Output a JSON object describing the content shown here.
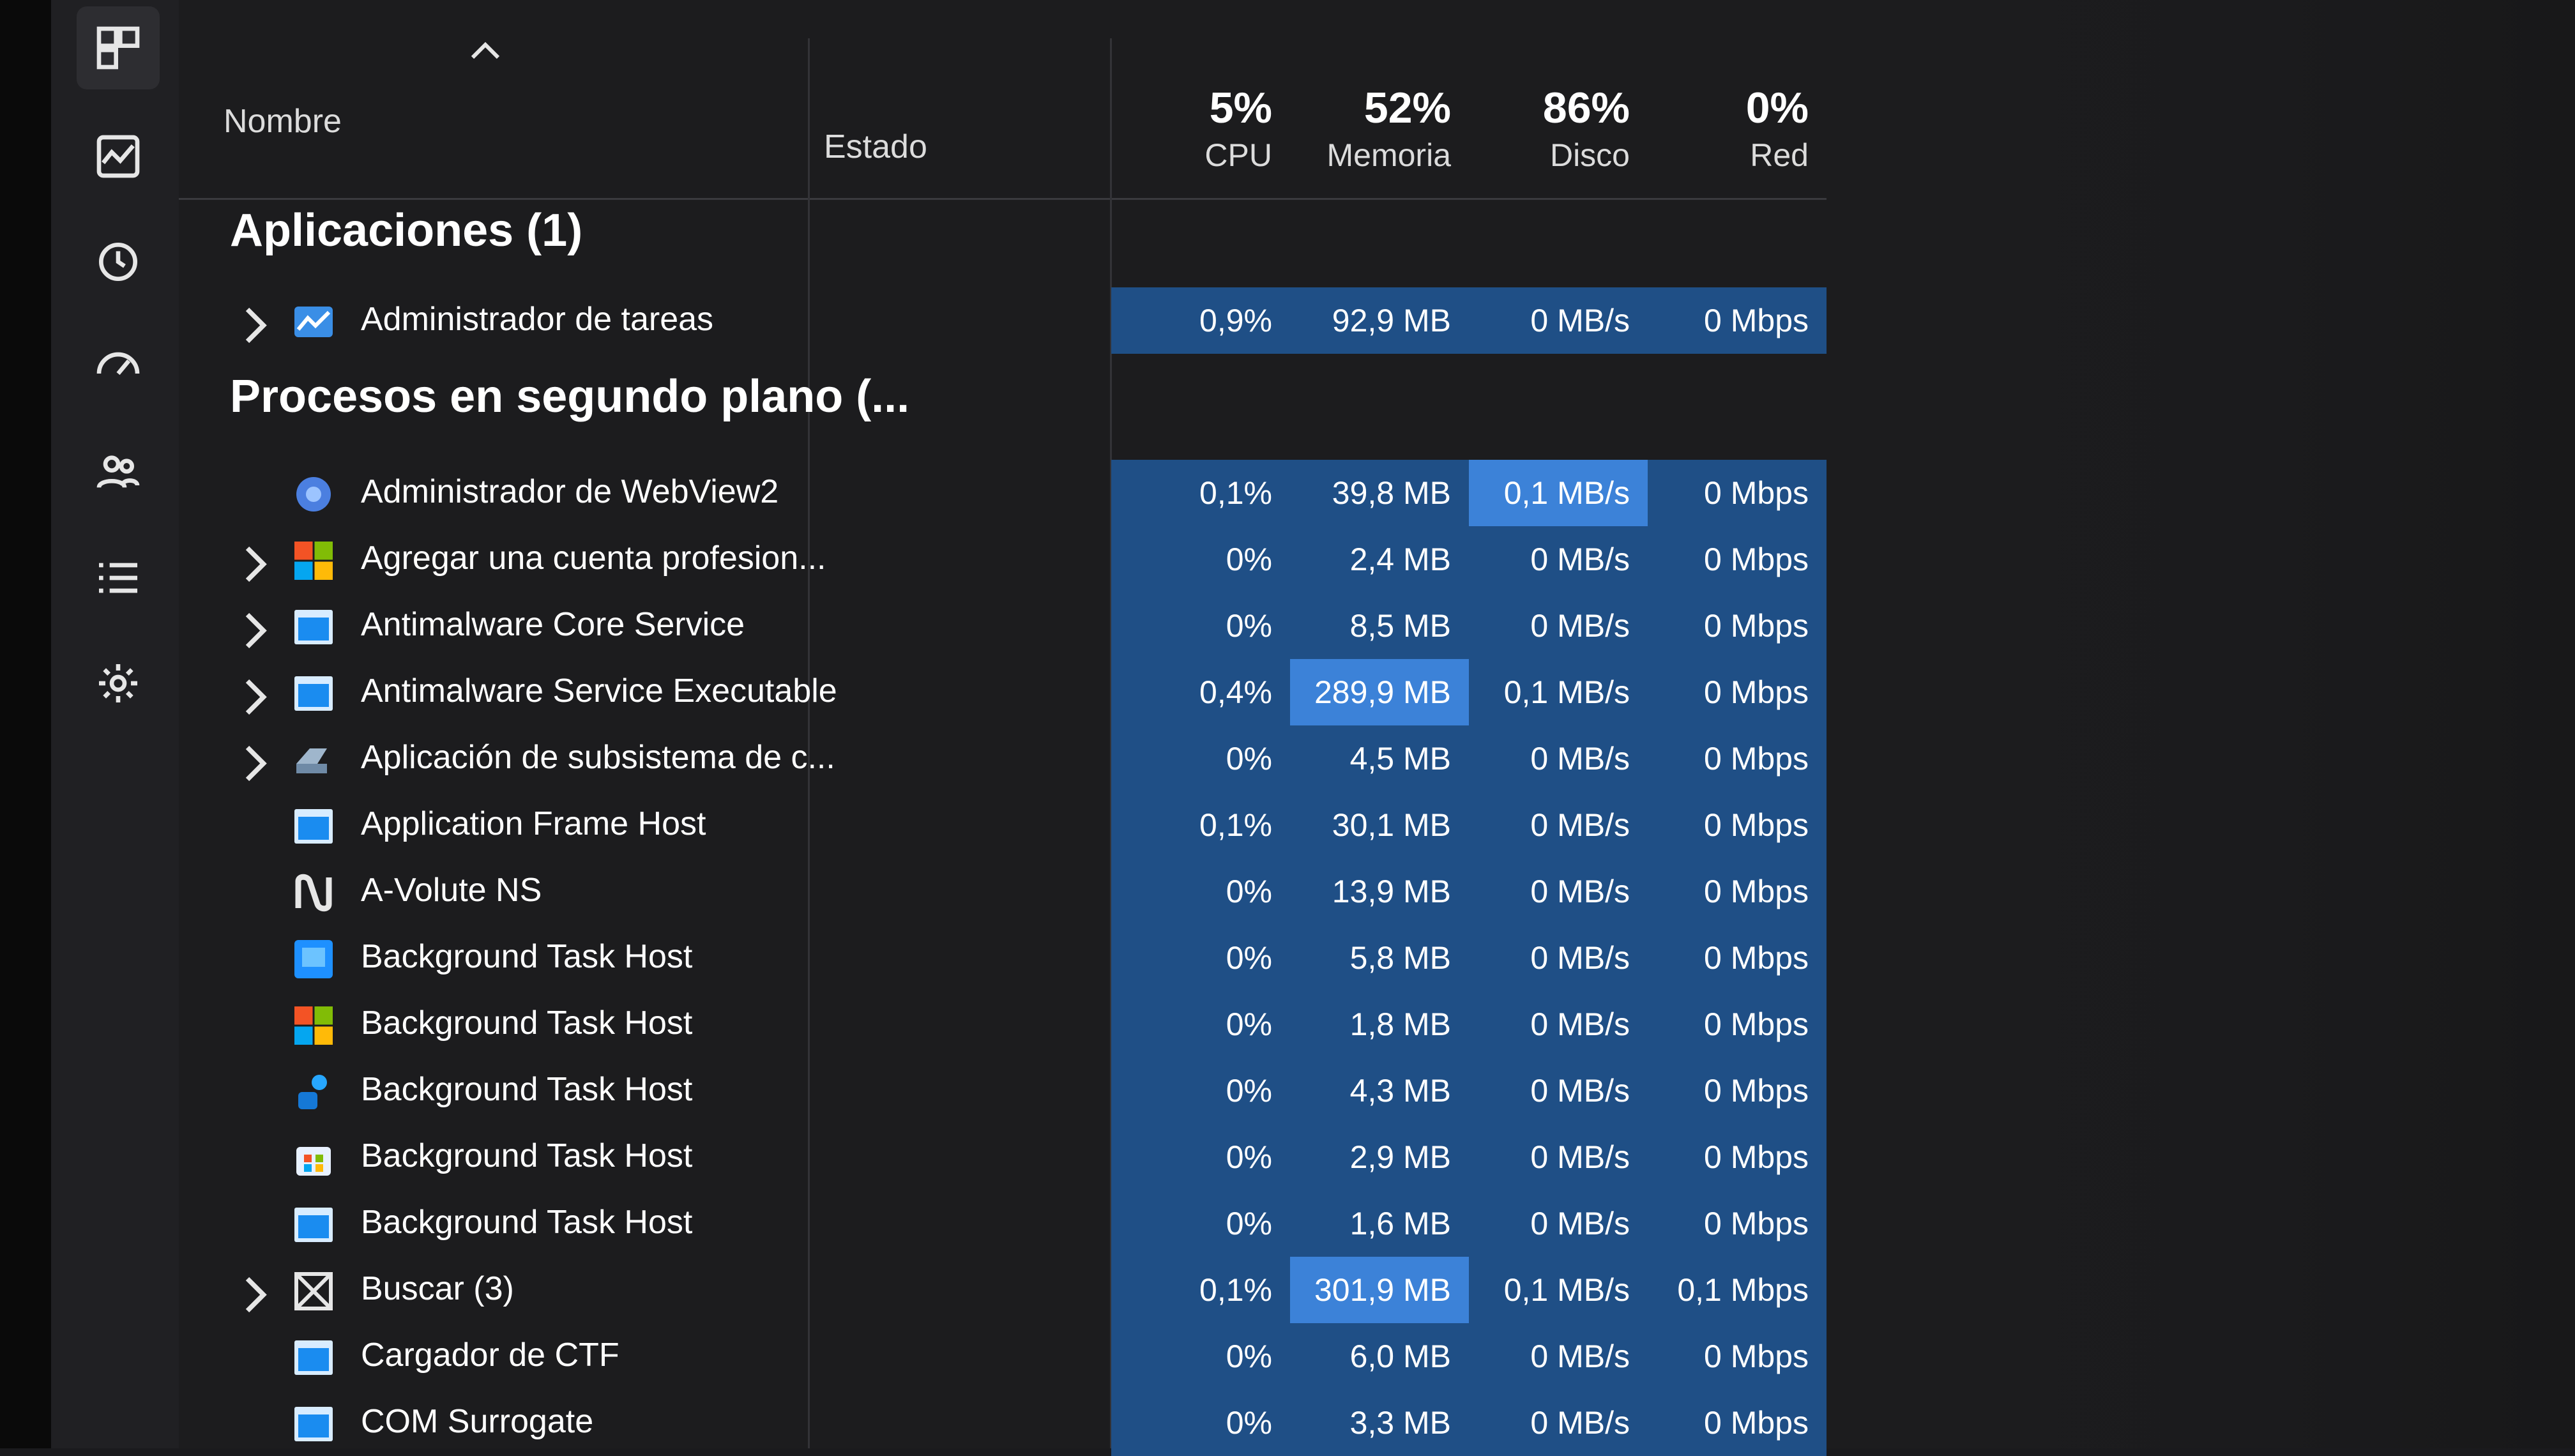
{
  "nav": {
    "items": [
      {
        "name": "processes-icon",
        "active": true
      },
      {
        "name": "performance-icon",
        "active": false
      },
      {
        "name": "app-history-icon",
        "active": false
      },
      {
        "name": "startup-apps-icon",
        "active": false
      },
      {
        "name": "users-icon",
        "active": false
      },
      {
        "name": "details-icon",
        "active": false
      },
      {
        "name": "services-icon",
        "active": false
      }
    ]
  },
  "columns": {
    "name": "Nombre",
    "status": "Estado",
    "cpu": {
      "pct": "5%",
      "label": "CPU"
    },
    "memory": {
      "pct": "52%",
      "label": "Memoria"
    },
    "disk": {
      "pct": "86%",
      "label": "Disco"
    },
    "network": {
      "pct": "0%",
      "label": "Red"
    }
  },
  "sections": {
    "apps": "Aplicaciones (1)",
    "background": "Procesos en segundo plano (..."
  },
  "apps": [
    {
      "name": "Administrador de tareas",
      "expandable": true,
      "icon": "task-manager-icon",
      "cpu": "0,9%",
      "memory": "92,9 MB",
      "disk": "0 MB/s",
      "network": "0 Mbps"
    }
  ],
  "background": [
    {
      "name": "Administrador de WebView2",
      "expandable": false,
      "icon": "webview-icon",
      "cpu": "0,1%",
      "memory": "39,8 MB",
      "disk": "0,1 MB/s",
      "network": "0 Mbps",
      "hl": "disk"
    },
    {
      "name": "Agregar una cuenta profesion...",
      "expandable": true,
      "icon": "windows-logo-icon",
      "cpu": "0%",
      "memory": "2,4 MB",
      "disk": "0 MB/s",
      "network": "0 Mbps"
    },
    {
      "name": "Antimalware Core Service",
      "expandable": true,
      "icon": "window-app-icon",
      "cpu": "0%",
      "memory": "8,5 MB",
      "disk": "0 MB/s",
      "network": "0 Mbps"
    },
    {
      "name": "Antimalware Service Executable",
      "expandable": true,
      "icon": "window-app-icon",
      "cpu": "0,4%",
      "memory": "289,9 MB",
      "disk": "0,1 MB/s",
      "network": "0 Mbps",
      "hl": "memory"
    },
    {
      "name": "Aplicación de subsistema de c...",
      "expandable": true,
      "icon": "subsystem-icon",
      "cpu": "0%",
      "memory": "4,5 MB",
      "disk": "0 MB/s",
      "network": "0 Mbps"
    },
    {
      "name": "Application Frame Host",
      "expandable": false,
      "icon": "window-app-icon",
      "cpu": "0,1%",
      "memory": "30,1 MB",
      "disk": "0 MB/s",
      "network": "0 Mbps"
    },
    {
      "name": "A-Volute NS",
      "expandable": false,
      "icon": "avolute-icon",
      "cpu": "0%",
      "memory": "13,9 MB",
      "disk": "0 MB/s",
      "network": "0 Mbps"
    },
    {
      "name": "Background Task Host",
      "expandable": false,
      "icon": "blue-square-icon",
      "cpu": "0%",
      "memory": "5,8 MB",
      "disk": "0 MB/s",
      "network": "0 Mbps"
    },
    {
      "name": "Background Task Host",
      "expandable": false,
      "icon": "windows-logo-icon",
      "cpu": "0%",
      "memory": "1,8 MB",
      "disk": "0 MB/s",
      "network": "0 Mbps"
    },
    {
      "name": "Background Task Host",
      "expandable": false,
      "icon": "people-icon",
      "cpu": "0%",
      "memory": "4,3 MB",
      "disk": "0 MB/s",
      "network": "0 Mbps"
    },
    {
      "name": "Background Task Host",
      "expandable": false,
      "icon": "store-icon",
      "cpu": "0%",
      "memory": "2,9 MB",
      "disk": "0 MB/s",
      "network": "0 Mbps"
    },
    {
      "name": "Background Task Host",
      "expandable": false,
      "icon": "window-app-icon",
      "cpu": "0%",
      "memory": "1,6 MB",
      "disk": "0 MB/s",
      "network": "0 Mbps"
    },
    {
      "name": "Buscar (3)",
      "expandable": true,
      "icon": "search-box-icon",
      "cpu": "0,1%",
      "memory": "301,9 MB",
      "disk": "0,1 MB/s",
      "network": "0,1 Mbps",
      "hl": "memory"
    },
    {
      "name": "Cargador de CTF",
      "expandable": false,
      "icon": "window-app-icon",
      "cpu": "0%",
      "memory": "6,0 MB",
      "disk": "0 MB/s",
      "network": "0 Mbps"
    },
    {
      "name": "COM Surrogate",
      "expandable": false,
      "icon": "window-app-icon",
      "cpu": "0%",
      "memory": "3,3 MB",
      "disk": "0 MB/s",
      "network": "0 Mbps"
    }
  ]
}
